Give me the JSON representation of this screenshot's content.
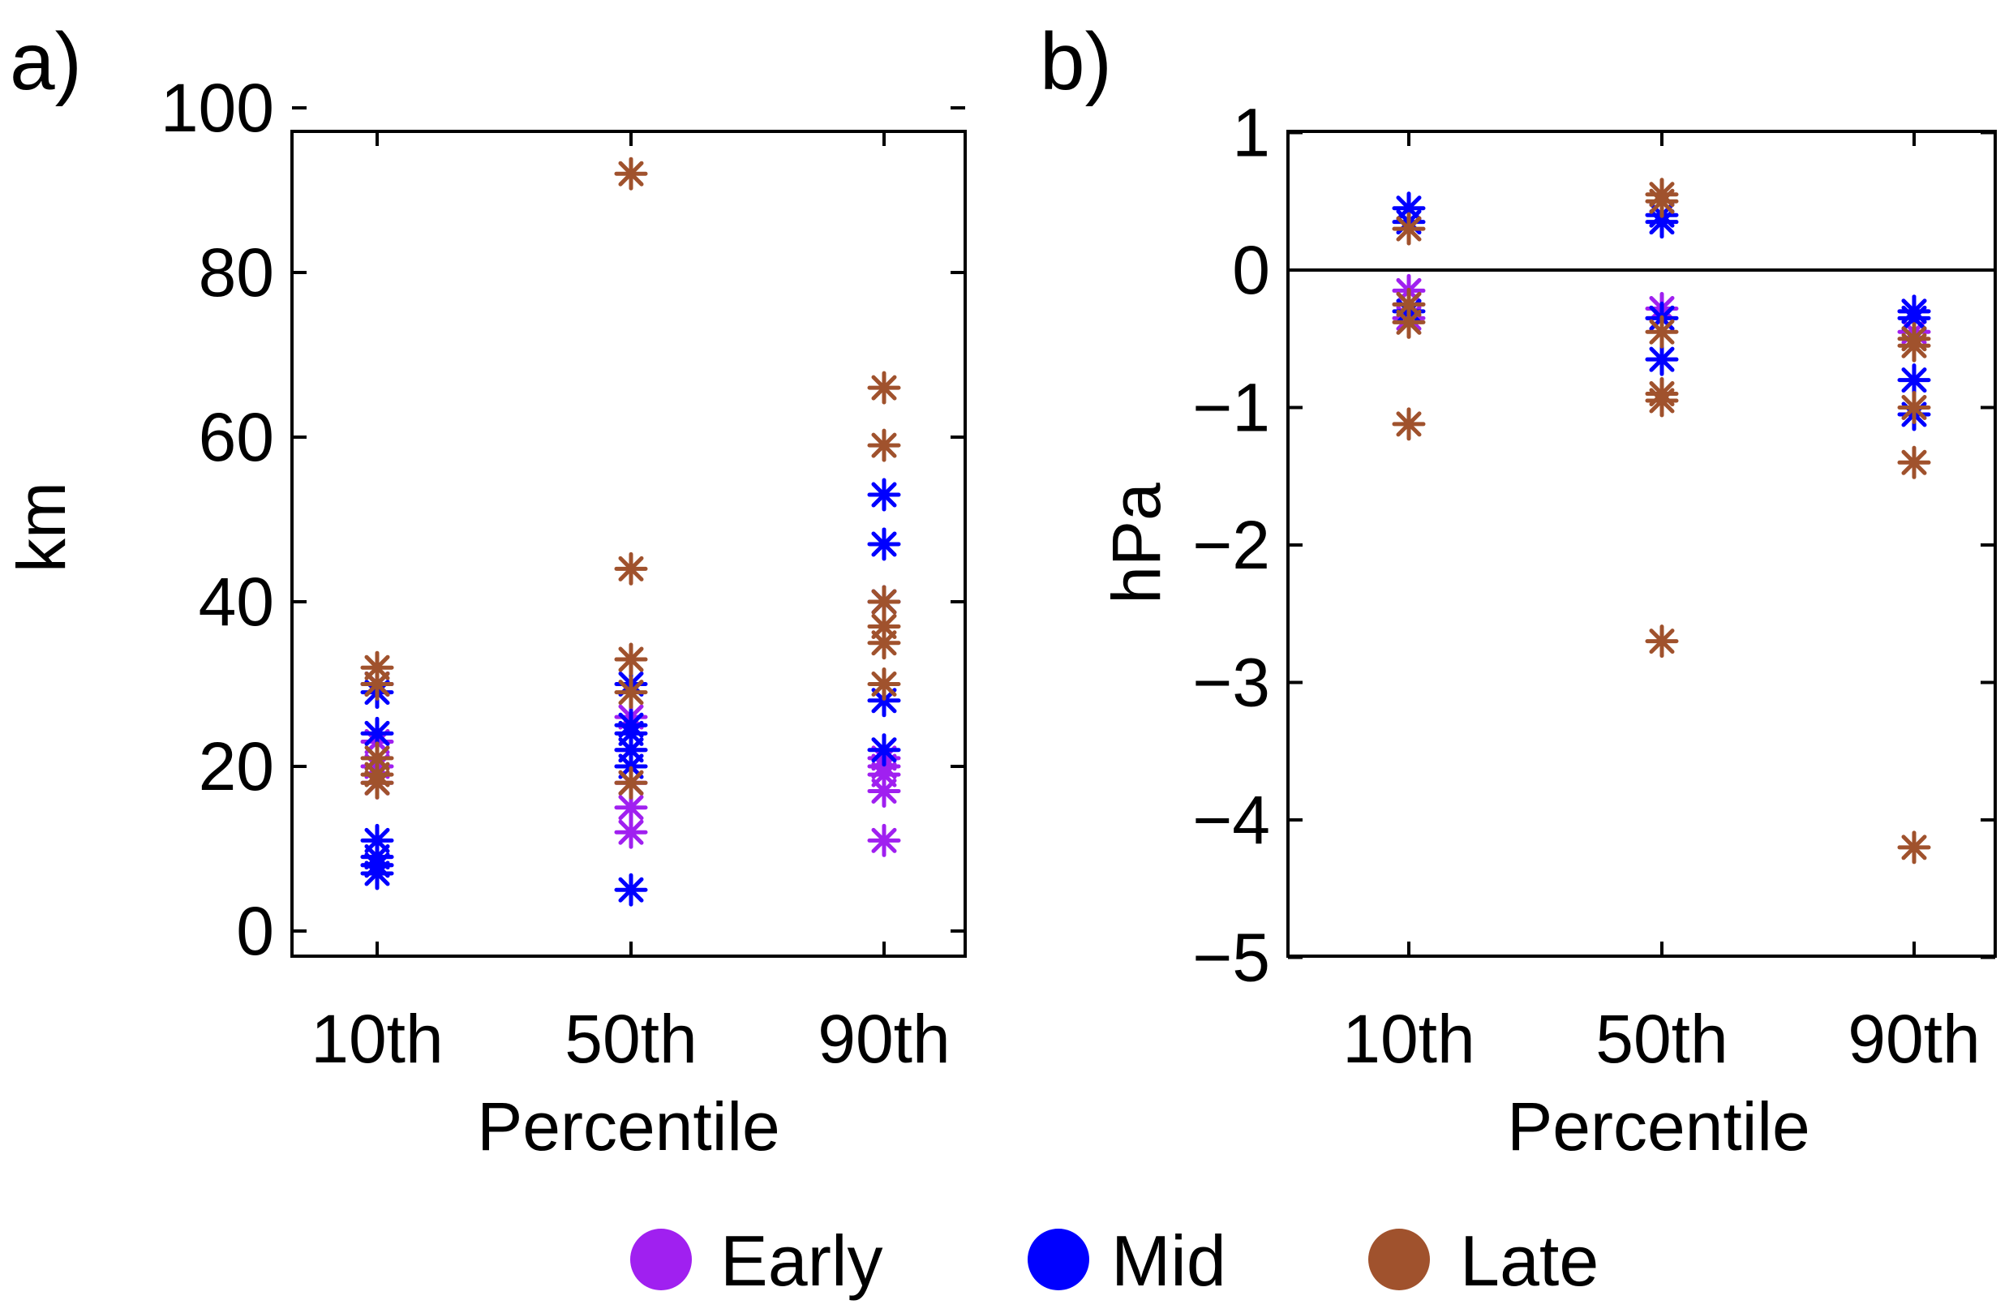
{
  "figure": {
    "legend": [
      {
        "name": "Early",
        "color": "#A020F0"
      },
      {
        "name": "Mid",
        "color": "#0000FF"
      },
      {
        "name": "Late",
        "color": "#A0522D"
      }
    ]
  },
  "chart_data": [
    {
      "panel": "a)",
      "type": "scatter",
      "marker": "asterisk",
      "xlabel": "Percentile",
      "ylabel": "km",
      "categories": [
        "10th",
        "50th",
        "90th"
      ],
      "ylim": [
        -2,
        100
      ],
      "yticks": [
        0,
        20,
        40,
        60,
        80,
        100
      ],
      "series": [
        {
          "name": "Early",
          "color": "#A020F0",
          "points": {
            "10th": [
              8,
              9,
              18,
              20,
              23,
              30
            ],
            "50th": [
              12,
              15,
              18,
              20,
              22,
              26
            ],
            "90th": [
              11,
              17,
              19,
              20,
              21
            ]
          }
        },
        {
          "name": "Mid",
          "color": "#0000FF",
          "points": {
            "10th": [
              7,
              8,
              9,
              11,
              24,
              29,
              30
            ],
            "50th": [
              5,
              20,
              22,
              24,
              25,
              30
            ],
            "90th": [
              22,
              28,
              40,
              47,
              53
            ]
          }
        },
        {
          "name": "Late",
          "color": "#A0522D",
          "points": {
            "10th": [
              18,
              19,
              21,
              30,
              32
            ],
            "50th": [
              18,
              29,
              33,
              44,
              92
            ],
            "90th": [
              30,
              35,
              37,
              40,
              59,
              66
            ]
          }
        }
      ]
    },
    {
      "panel": "b)",
      "type": "scatter",
      "marker": "asterisk",
      "xlabel": "Percentile",
      "ylabel": "hPa",
      "categories": [
        "10th",
        "50th",
        "90th"
      ],
      "ylim": [
        -5,
        1
      ],
      "yticks": [
        1,
        0,
        -1,
        -2,
        -3,
        -4,
        -5
      ],
      "ytick_labels": [
        "1",
        "0",
        "−1",
        "−2",
        "−3",
        "−4",
        "−5"
      ],
      "reference_line": 0,
      "series": [
        {
          "name": "Early",
          "color": "#A020F0",
          "points": {
            "10th": [
              -0.15,
              -0.25,
              -0.35
            ],
            "50th": [
              -0.28,
              -0.35
            ],
            "90th": [
              -0.3,
              -0.45
            ]
          }
        },
        {
          "name": "Mid",
          "color": "#0000FF",
          "points": {
            "10th": [
              0.45,
              0.35,
              -0.3
            ],
            "50th": [
              0.4,
              0.35,
              -0.35,
              -0.65
            ],
            "90th": [
              -0.3,
              -0.35,
              -0.8,
              -1.05
            ]
          }
        },
        {
          "name": "Late",
          "color": "#A0522D",
          "points": {
            "10th": [
              0.3,
              -0.25,
              -0.38,
              -1.12
            ],
            "50th": [
              0.55,
              0.5,
              -0.45,
              -0.9,
              -0.95,
              -2.7
            ],
            "90th": [
              -0.5,
              -0.55,
              -1.0,
              -1.4,
              -4.2
            ]
          }
        }
      ]
    }
  ]
}
